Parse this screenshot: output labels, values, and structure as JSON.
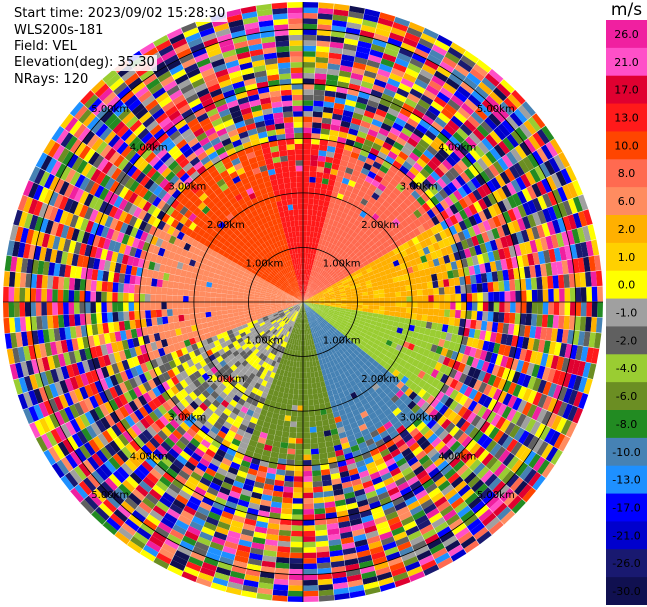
{
  "info": {
    "start_time": "Start time: 2023/09/02 15:28:30",
    "instrument": "WLS200s-181",
    "field": "Field: VEL",
    "elevation": "Elevation(deg): 35.30",
    "nrays": "NRays: 120"
  },
  "chart_data": {
    "type": "heatmap",
    "projection": "polar",
    "field": "VEL",
    "nrays": 120,
    "elevation_deg": 35.3,
    "max_range_km": 5.5,
    "range_rings_km": [
      1,
      2,
      3,
      4,
      5
    ],
    "ring_labels": [
      "1.00km",
      "2.00km",
      "3.00km",
      "4.00km",
      "5.00km"
    ],
    "colorbar": {
      "unit": "m/s",
      "ticks": [
        "26.0",
        "21.0",
        "17.0",
        "13.0",
        "10.0",
        "8.0",
        "6.0",
        "2.0",
        "1.0",
        "0.0",
        "-1.0",
        "-2.0",
        "-4.0",
        "-6.0",
        "-8.0",
        "-10.0",
        "-13.0",
        "-17.0",
        "-21.0",
        "-26.0",
        "-30.0"
      ],
      "colors": [
        "#f020a0",
        "#ff50c8",
        "#e00030",
        "#ff1a1a",
        "#ff4500",
        "#ff6a50",
        "#ff8c60",
        "#ffb000",
        "#ffd000",
        "#ffff00",
        "#a0a0a0",
        "#606060",
        "#9acd32",
        "#6b8e23",
        "#228b22",
        "#4682b4",
        "#1e90ff",
        "#0000ff",
        "#0000cd",
        "#191970",
        "#101050"
      ]
    },
    "coherent_region_km": 3.0,
    "sector_velocity_mps": [
      {
        "az_from": 300,
        "az_to": 345,
        "value": 10
      },
      {
        "az_from": 345,
        "az_to": 15,
        "value": 13
      },
      {
        "az_from": 15,
        "az_to": 60,
        "value": 8
      },
      {
        "az_from": 60,
        "az_to": 100,
        "value": 2
      },
      {
        "az_from": 100,
        "az_to": 130,
        "value": -4
      },
      {
        "az_from": 130,
        "az_to": 165,
        "value": -10
      },
      {
        "az_from": 165,
        "az_to": 200,
        "value": -6
      },
      {
        "az_from": 200,
        "az_to": 250,
        "value": -1
      },
      {
        "az_from": 250,
        "az_to": 300,
        "value": 6
      }
    ]
  }
}
